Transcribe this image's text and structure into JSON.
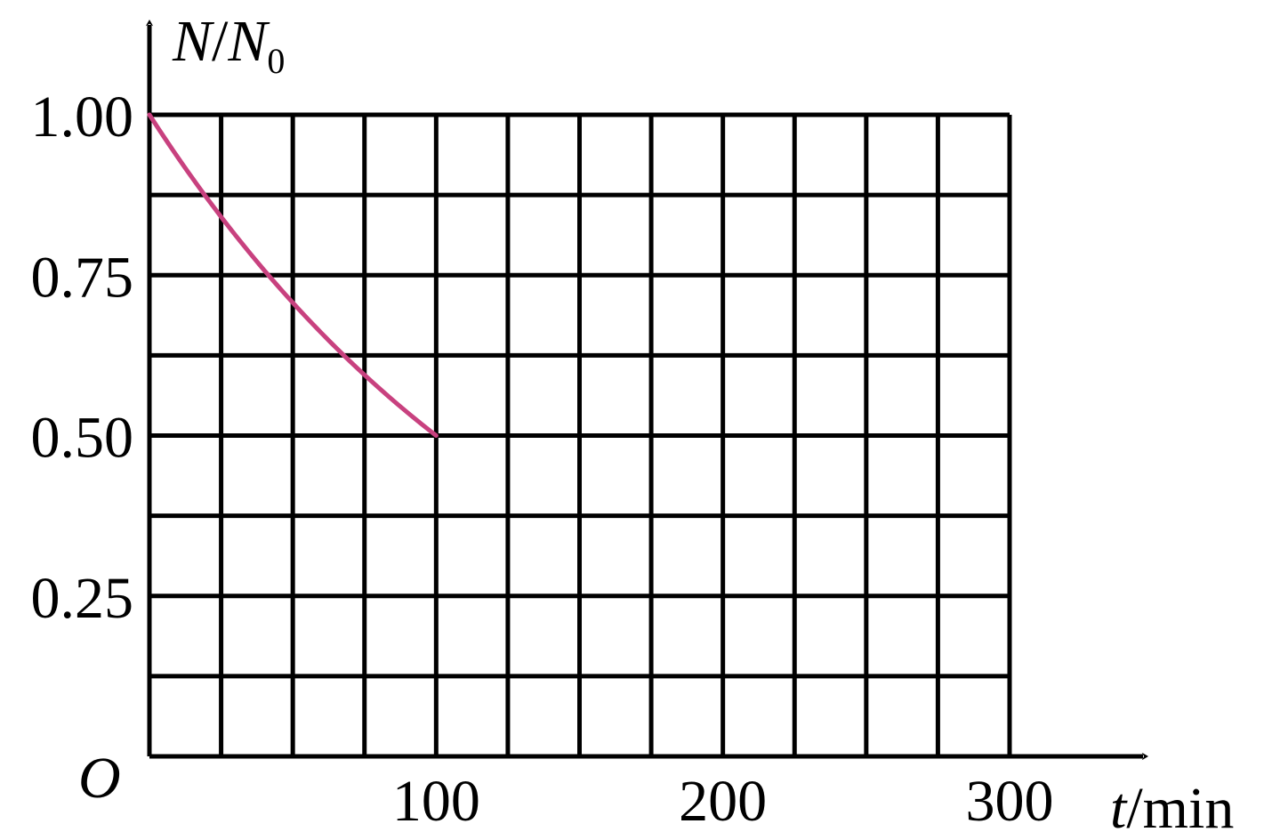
{
  "chart_data": {
    "type": "line",
    "x_range": [
      0,
      300
    ],
    "y_range": [
      0,
      1.0
    ],
    "x_grid_step": 25,
    "y_grid_step": 0.125,
    "grid": true,
    "origin_label": "O",
    "x_axis_label": {
      "var": "t",
      "unit": "/min"
    },
    "y_axis_label": {
      "var": "N",
      "sep": "/",
      "var2": "N",
      "sub": "0"
    },
    "x_ticks": [
      {
        "value": 100,
        "label": "100"
      },
      {
        "value": 200,
        "label": "200"
      },
      {
        "value": 300,
        "label": "300"
      }
    ],
    "y_ticks": [
      {
        "value": 1.0,
        "label": "1.00"
      },
      {
        "value": 0.75,
        "label": "0.75"
      },
      {
        "value": 0.5,
        "label": "0.50"
      },
      {
        "value": 0.25,
        "label": "0.25"
      }
    ],
    "series": [
      {
        "color": "#c8417f",
        "model": "exponential-decay",
        "half_life": 100,
        "x": [
          0,
          10,
          20,
          30,
          40,
          50,
          60,
          70,
          80,
          90,
          100
        ],
        "y": [
          1.0,
          0.933,
          0.871,
          0.812,
          0.758,
          0.707,
          0.66,
          0.616,
          0.574,
          0.536,
          0.5
        ]
      }
    ]
  }
}
